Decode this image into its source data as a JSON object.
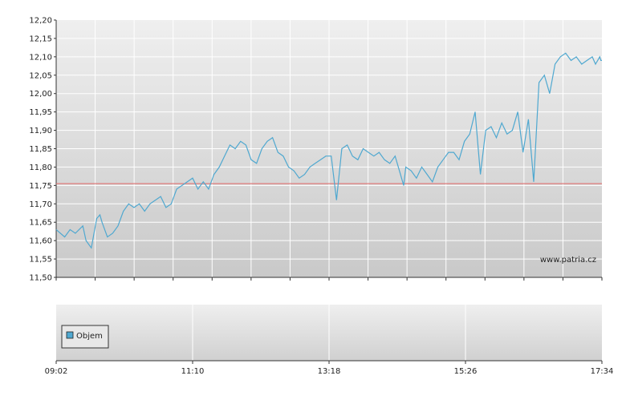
{
  "watermark": "www.patria.cz",
  "volume_legend_label": "Objem",
  "colors": {
    "price_line": "#4fa8d0",
    "reference_line": "#e07070",
    "volume_swatch": "#4fa8d0",
    "plot_top": "#eeeeee",
    "plot_bottom": "#c8c8c8"
  },
  "chart_data": [
    {
      "type": "line",
      "ylim": [
        11.5,
        12.2
      ],
      "y_ticks": [
        "12,20",
        "12,15",
        "12,10",
        "12,05",
        "12,00",
        "11,95",
        "11,90",
        "11,85",
        "11,80",
        "11,75",
        "11,70",
        "11,65",
        "11,60",
        "11,55",
        "11,50"
      ],
      "x_range": [
        "09:02",
        "17:34"
      ],
      "grid": true,
      "reference_value": 11.755,
      "series": [
        {
          "x": [
            "09:02",
            "09:10",
            "09:15",
            "09:20",
            "09:27",
            "09:30",
            "09:35",
            "09:40",
            "09:43",
            "09:45",
            "09:50",
            "09:55",
            "10:00",
            "10:05",
            "10:10",
            "10:15",
            "10:20",
            "10:25",
            "10:30",
            "10:35",
            "10:40",
            "10:45",
            "10:50",
            "10:55",
            "11:00",
            "11:05",
            "11:10",
            "11:15",
            "11:20",
            "11:25",
            "11:30",
            "11:35",
            "11:40",
            "11:45",
            "11:50",
            "11:55",
            "12:00",
            "12:05",
            "12:10",
            "12:15",
            "12:20",
            "12:25",
            "12:30",
            "12:35",
            "12:40",
            "12:45",
            "12:50",
            "12:55",
            "13:00",
            "13:05",
            "13:10",
            "13:15",
            "13:20",
            "13:25",
            "13:30",
            "13:35",
            "13:40",
            "13:45",
            "13:50",
            "13:55",
            "14:00",
            "14:05",
            "14:10",
            "14:15",
            "14:20",
            "14:25",
            "14:28",
            "14:30",
            "14:35",
            "14:40",
            "14:45",
            "14:50",
            "14:55",
            "15:00",
            "15:05",
            "15:10",
            "15:15",
            "15:20",
            "15:25",
            "15:30",
            "15:35",
            "15:40",
            "15:45",
            "15:50",
            "15:55",
            "16:00",
            "16:05",
            "16:10",
            "16:15",
            "16:20",
            "16:25",
            "16:30",
            "16:35",
            "16:40",
            "16:45",
            "16:50",
            "16:55",
            "17:00",
            "17:05",
            "17:10",
            "17:15",
            "17:20",
            "17:25",
            "17:28",
            "17:30",
            "17:32",
            "17:33",
            "17:34"
          ],
          "values": [
            11.63,
            11.61,
            11.63,
            11.62,
            11.64,
            11.6,
            11.58,
            11.66,
            11.67,
            11.65,
            11.61,
            11.62,
            11.64,
            11.68,
            11.7,
            11.69,
            11.7,
            11.68,
            11.7,
            11.71,
            11.72,
            11.69,
            11.7,
            11.74,
            11.75,
            11.76,
            11.77,
            11.74,
            11.76,
            11.74,
            11.78,
            11.8,
            11.83,
            11.86,
            11.85,
            11.87,
            11.86,
            11.82,
            11.81,
            11.85,
            11.87,
            11.88,
            11.84,
            11.83,
            11.8,
            11.79,
            11.77,
            11.78,
            11.8,
            11.81,
            11.82,
            11.83,
            11.83,
            11.71,
            11.85,
            11.86,
            11.83,
            11.82,
            11.85,
            11.84,
            11.83,
            11.84,
            11.82,
            11.81,
            11.83,
            11.78,
            11.75,
            11.8,
            11.79,
            11.77,
            11.8,
            11.78,
            11.76,
            11.8,
            11.82,
            11.84,
            11.84,
            11.82,
            11.87,
            11.89,
            11.95,
            11.78,
            11.9,
            11.91,
            11.88,
            11.92,
            11.89,
            11.9,
            11.95,
            11.84,
            11.93,
            11.76,
            12.03,
            12.05,
            12.0,
            12.08,
            12.1,
            12.11,
            12.09,
            12.1,
            12.08,
            12.09,
            12.1,
            12.08,
            12.09,
            12.1,
            12.09,
            12.09
          ]
        }
      ]
    },
    {
      "type": "bar",
      "legend": [
        "Objem"
      ],
      "legend_placement": "top-left",
      "x_ticks": [
        "09:02",
        "11:10",
        "13:18",
        "15:26",
        "17:34"
      ],
      "grid": true,
      "series": [
        {
          "name": "Objem",
          "values": []
        }
      ]
    }
  ]
}
